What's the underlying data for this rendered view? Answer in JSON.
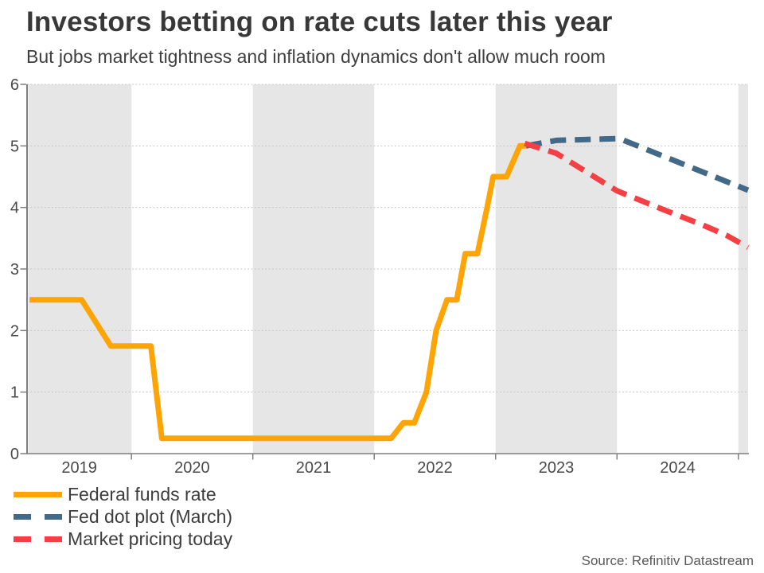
{
  "header": {
    "title": "Investors betting on rate cuts later this year",
    "subtitle": "But jobs market tightness and inflation dynamics don't allow much room"
  },
  "source": "Source: Refinitiv Datastream",
  "legend": {
    "items": [
      {
        "label": "Federal funds rate",
        "swatch": "solid-line",
        "color": "#FFA405"
      },
      {
        "label": "Fed dot plot (March)",
        "swatch": "dashed-line",
        "color": "#426988"
      },
      {
        "label": "Market pricing today",
        "swatch": "dashed-line",
        "color": "#F43F44"
      }
    ]
  },
  "chart_data": {
    "type": "line",
    "title": "Investors betting on rate cuts later this year",
    "subtitle": "But jobs market tightness and inflation dynamics don't allow much room",
    "x_axis": {
      "min": 2019.14,
      "max": 2025.08,
      "year_labels": [
        "2019",
        "2020",
        "2021",
        "2022",
        "2023",
        "2024"
      ],
      "year_boundaries": [
        2020,
        2021,
        2022,
        2023,
        2024,
        2025
      ]
    },
    "y_axis": {
      "min": 0,
      "max": 6,
      "ticks": [
        "0",
        "1",
        "2",
        "3",
        "4",
        "5",
        "6"
      ]
    },
    "shaded_year_bands": [
      [
        2019.14,
        2020
      ],
      [
        2021,
        2022
      ],
      [
        2023,
        2024
      ],
      [
        2025,
        2025.08
      ]
    ],
    "colors": {
      "band": "#E6E6E6",
      "gridline": "#C4C4C4",
      "axis": "#7F7F7F",
      "tick_label": "#4A4A4A"
    },
    "grid": "dotted-horizontal",
    "legend_position": "bottom-left",
    "series": [
      {
        "name": "Federal funds rate",
        "color": "#FFA405",
        "line_style": "solid",
        "points": [
          [
            2019.16,
            2.5
          ],
          [
            2019.59,
            2.5
          ],
          [
            2019.83,
            1.75
          ],
          [
            2020.16,
            1.75
          ],
          [
            2020.25,
            0.25
          ],
          [
            2022.14,
            0.25
          ],
          [
            2022.24,
            0.5
          ],
          [
            2022.33,
            0.5
          ],
          [
            2022.43,
            1.0
          ],
          [
            2022.51,
            2.0
          ],
          [
            2022.6,
            2.5
          ],
          [
            2022.68,
            2.5
          ],
          [
            2022.75,
            3.25
          ],
          [
            2022.85,
            3.25
          ],
          [
            2022.93,
            4.0
          ],
          [
            2022.98,
            4.5
          ],
          [
            2023.09,
            4.5
          ],
          [
            2023.2,
            5.0
          ],
          [
            2023.25,
            5.0
          ]
        ]
      },
      {
        "name": "Fed dot plot (March)",
        "color": "#426988",
        "line_style": "dashed",
        "points": [
          [
            2023.25,
            5.0
          ],
          [
            2023.5,
            5.09
          ],
          [
            2024.02,
            5.12
          ],
          [
            2025.08,
            4.28
          ]
        ]
      },
      {
        "name": "Market pricing today",
        "color": "#F43F44",
        "line_style": "dashed",
        "points": [
          [
            2023.24,
            5.04
          ],
          [
            2023.5,
            4.88
          ],
          [
            2024.0,
            4.27
          ],
          [
            2024.4,
            3.95
          ],
          [
            2024.7,
            3.72
          ],
          [
            2024.9,
            3.55
          ],
          [
            2025.08,
            3.35
          ]
        ]
      }
    ]
  }
}
